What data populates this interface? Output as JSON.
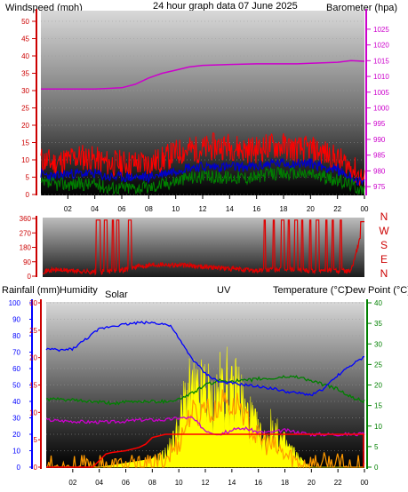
{
  "title": "24 hour graph data   07 June 2025",
  "colors": {
    "windspeed": "#ff0000",
    "windgust": "#0000cc",
    "windavg": "#008000",
    "barometer": "#cc00cc",
    "rainfall": "#ff0000",
    "humidity": "#0000ff",
    "solar": "#ffff00",
    "uv": "#ff9900",
    "temperature": "#008000",
    "dewpoint": "#cc00cc",
    "title": "#ffff00",
    "label_red": "#cc0000",
    "label_humidity": "#0000cc",
    "label_solar": "#808000",
    "label_uv": "#ff9900",
    "label_temp": "#006400",
    "label_dew": "#cc00cc"
  },
  "chart_data": [
    {
      "type": "line",
      "title": "24 hour graph data   07 June 2025",
      "left_label": "Windspeed (mph)",
      "right_label": "Barometer (hpa)",
      "x_ticks": [
        "02",
        "04",
        "06",
        "08",
        "10",
        "12",
        "14",
        "16",
        "18",
        "20",
        "22",
        "00"
      ],
      "y_left": {
        "ticks": [
          0,
          5,
          10,
          15,
          20,
          25,
          30,
          35,
          40,
          45,
          50
        ],
        "range": [
          0,
          50
        ]
      },
      "y_right": {
        "ticks": [
          975,
          980,
          985,
          990,
          995,
          1000,
          1005,
          1010,
          1015,
          1020,
          1025
        ],
        "range": [
          972.5,
          1027.5
        ]
      },
      "series": [
        {
          "key": "windspeed",
          "x": [
            0,
            1,
            2,
            3,
            4,
            5,
            6,
            7,
            8,
            9,
            10,
            11,
            12,
            13,
            14,
            15,
            16,
            17,
            18,
            19,
            20,
            21,
            22,
            23,
            24
          ],
          "y": [
            10,
            9,
            10,
            11,
            10,
            9,
            9,
            9,
            9,
            10,
            12,
            13,
            13,
            14,
            14,
            13,
            13,
            14,
            14,
            13,
            13,
            12,
            10,
            8,
            4
          ]
        },
        {
          "key": "windgust",
          "x": [
            0,
            1,
            2,
            3,
            4,
            5,
            6,
            7,
            8,
            9,
            10,
            11,
            12,
            13,
            14,
            15,
            16,
            17,
            18,
            19,
            20,
            21,
            22,
            23,
            24
          ],
          "y": [
            6,
            5,
            6,
            6,
            6,
            5,
            5,
            5,
            5,
            6,
            7,
            8,
            8,
            8,
            8,
            8,
            8,
            9,
            9,
            9,
            9,
            8,
            7,
            5,
            3
          ]
        },
        {
          "key": "windavg",
          "x": [
            0,
            1,
            2,
            3,
            4,
            5,
            6,
            7,
            8,
            9,
            10,
            11,
            12,
            13,
            14,
            15,
            16,
            17,
            18,
            19,
            20,
            21,
            22,
            23,
            24
          ],
          "y": [
            3,
            3,
            3,
            3,
            3,
            2,
            2,
            2,
            2,
            3,
            4,
            5,
            5,
            5,
            5,
            5,
            5,
            6,
            6,
            6,
            6,
            5,
            4,
            3,
            1
          ]
        },
        {
          "key": "barometer",
          "axis": "right",
          "x": [
            0,
            2,
            4,
            6,
            7,
            8,
            9,
            10,
            11,
            12,
            14,
            16,
            18,
            19,
            20,
            22,
            23,
            24
          ],
          "y": [
            1006,
            1006,
            1006,
            1006.4,
            1007.5,
            1009.5,
            1011,
            1012,
            1013,
            1013.5,
            1013.8,
            1014,
            1014,
            1014,
            1014.2,
            1014.5,
            1015,
            1014.8
          ]
        }
      ]
    },
    {
      "type": "line",
      "y_ticks": [
        0,
        90,
        180,
        270,
        360
      ],
      "y_range": [
        0,
        360
      ],
      "direction_labels": [
        "N",
        "W",
        "S",
        "E",
        "N"
      ],
      "series": [
        {
          "key": "winddir",
          "x": [
            0,
            1,
            2,
            3,
            4,
            5,
            6,
            7,
            8,
            9,
            10,
            11,
            12,
            13,
            14,
            15,
            16,
            17,
            18,
            19,
            20,
            21,
            22,
            23,
            24
          ],
          "y": [
            30,
            40,
            35,
            30,
            25,
            30,
            40,
            60,
            70,
            75,
            70,
            65,
            60,
            55,
            45,
            40,
            35,
            40,
            45,
            40,
            35,
            40,
            35,
            30,
            340
          ]
        }
      ]
    },
    {
      "type": "line",
      "labels": {
        "rainfall": "Rainfall (mm)",
        "humidity": "Humidity",
        "solar": "Solar",
        "uv": "UV",
        "temperature": "Temperature (°C)",
        "dewpoint": "Dew Point (°C)"
      },
      "x_ticks": [
        "02",
        "04",
        "06",
        "08",
        "10",
        "12",
        "14",
        "16",
        "18",
        "20",
        "22",
        "00"
      ],
      "y_humidity": {
        "ticks": [
          0,
          10,
          20,
          30,
          40,
          50,
          60,
          70,
          80,
          90,
          100
        ],
        "range": [
          0,
          100
        ]
      },
      "y_rainfall": {
        "ticks": [
          0,
          5,
          10,
          15,
          20,
          25,
          30
        ],
        "range": [
          0,
          30
        ]
      },
      "y_temperature": {
        "ticks": [
          0,
          5,
          10,
          15,
          20,
          25,
          30,
          35,
          40
        ],
        "range": [
          0,
          40
        ]
      },
      "series": [
        {
          "key": "humidity",
          "x": [
            0,
            1,
            2,
            3,
            4,
            5,
            6,
            7,
            8,
            9,
            9.5,
            10,
            10.5,
            11,
            12,
            13,
            14,
            15,
            16,
            17,
            18,
            19,
            20,
            21,
            22,
            23,
            24
          ],
          "y": [
            72,
            71,
            72,
            78,
            84,
            86,
            87,
            88,
            88,
            87,
            85,
            78,
            72,
            66,
            57,
            52,
            51,
            50,
            49,
            48,
            46,
            45,
            44,
            48,
            56,
            62,
            67
          ]
        },
        {
          "key": "rainfall",
          "x": [
            0,
            3.5,
            4,
            4.5,
            5,
            6,
            7,
            7.5,
            8,
            9,
            10,
            12,
            14,
            16,
            18,
            19,
            20,
            22,
            23,
            24
          ],
          "y": [
            0,
            0,
            1.2,
            2.4,
            2.7,
            3,
            3.6,
            4.2,
            5.4,
            6,
            6,
            6,
            6,
            6,
            6,
            6,
            6,
            6,
            6,
            6
          ]
        },
        {
          "key": "temperature",
          "x": [
            0,
            1,
            2,
            3,
            4,
            5,
            6,
            7,
            8,
            9,
            10,
            11,
            12,
            13,
            14,
            15,
            16,
            17,
            18,
            19,
            20,
            21,
            22,
            23,
            24
          ],
          "y": [
            16.5,
            16.5,
            16.3,
            16,
            15.8,
            15.5,
            15.8,
            16,
            16,
            16,
            16.5,
            18,
            20,
            21,
            21,
            21,
            21.5,
            21.5,
            22,
            22,
            21,
            20,
            19,
            17,
            16
          ]
        },
        {
          "key": "dewpoint",
          "x": [
            0,
            1,
            2,
            3,
            4,
            5,
            6,
            7,
            8,
            9,
            10,
            11,
            12,
            13,
            14,
            15,
            16,
            17,
            18,
            19,
            20,
            21,
            22,
            23,
            24
          ],
          "y": [
            11.5,
            11.3,
            11.2,
            11,
            11,
            11,
            11.2,
            11.5,
            11.5,
            11.5,
            12,
            12,
            9,
            8,
            9,
            9.5,
            8.5,
            8.5,
            9,
            8.5,
            8,
            8,
            8,
            8,
            8
          ]
        },
        {
          "key": "solar",
          "x": [
            0,
            4,
            5,
            6,
            7,
            8,
            9,
            9.5,
            10,
            10.5,
            11,
            11.5,
            12,
            12.5,
            13,
            13.5,
            14,
            14.5,
            15,
            15.5,
            16,
            16.5,
            17,
            17.5,
            18,
            18.5,
            19,
            19.5,
            20,
            21,
            24
          ],
          "y": [
            0,
            0,
            0.5,
            1,
            1.5,
            2,
            4,
            7,
            12,
            20,
            22,
            20,
            24,
            18,
            22,
            25,
            20,
            24,
            16,
            14,
            10,
            8,
            12,
            9,
            7,
            5,
            3,
            1,
            0,
            0,
            0
          ]
        },
        {
          "key": "uv",
          "x": [
            0,
            8,
            9,
            10,
            10.5,
            11,
            11.5,
            12,
            12.5,
            13,
            13.5,
            14,
            14.5,
            15,
            15.5,
            16,
            16.5,
            17,
            18,
            19,
            24
          ],
          "y": [
            0,
            0,
            2,
            6,
            10,
            14,
            12,
            16,
            12,
            15,
            17,
            14,
            16,
            12,
            9,
            7,
            6,
            5,
            3,
            1,
            0
          ]
        }
      ]
    }
  ]
}
